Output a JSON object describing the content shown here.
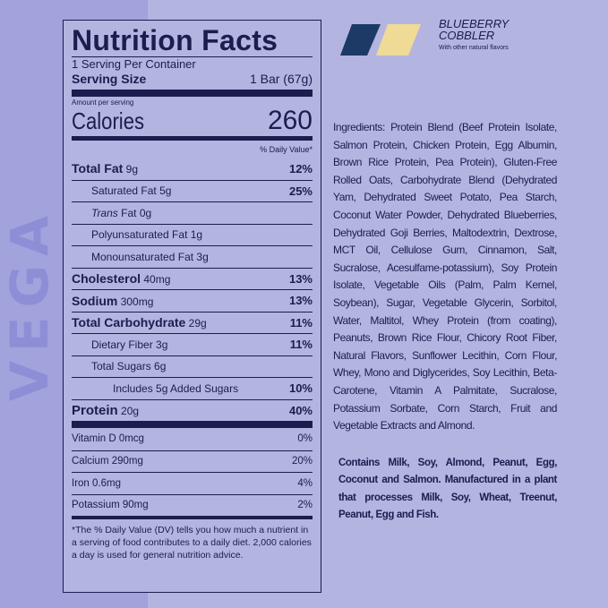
{
  "background_brand_text": "VEGA",
  "label": {
    "title": "Nutrition Facts",
    "servings": "1 Serving Per Container",
    "serving_size_label": "Serving Size",
    "serving_size": "1 Bar (67g)",
    "amount_per_serving": "Amount per serving",
    "calories_label": "Calories",
    "calories": "260",
    "dv_header": "% Daily Value*",
    "nutrients": [
      {
        "name": "Total Fat",
        "amount": "9g",
        "dv": "12%"
      },
      {
        "name": "Saturated Fat",
        "amount": "5g",
        "dv": "25%"
      },
      {
        "name": "Trans",
        "name2": "Fat",
        "amount": "0g",
        "dv": ""
      },
      {
        "name": "Polyunsaturated Fat",
        "amount": "1g",
        "dv": ""
      },
      {
        "name": "Monounsaturated Fat",
        "amount": "3g",
        "dv": ""
      },
      {
        "name": "Cholesterol",
        "amount": "40mg",
        "dv": "13%"
      },
      {
        "name": "Sodium",
        "amount": "300mg",
        "dv": "13%"
      },
      {
        "name": "Total Carbohydrate",
        "amount": "29g",
        "dv": "11%"
      },
      {
        "name": "Dietary Fiber",
        "amount": "3g",
        "dv": "11%"
      },
      {
        "name": "Total Sugars",
        "amount": "6g",
        "dv": ""
      },
      {
        "name": "Includes 5g Added Sugars",
        "amount": "",
        "dv": "10%"
      },
      {
        "name": "Protein",
        "amount": "20g",
        "dv": "40%"
      }
    ],
    "vitamins": [
      {
        "name": "Vitamin D 0mcg",
        "dv": "0%"
      },
      {
        "name": "Calcium 290mg",
        "dv": "20%"
      },
      {
        "name": "Iron 0.6mg",
        "dv": "4%"
      },
      {
        "name": "Potassium 90mg",
        "dv": "2%"
      }
    ],
    "footnote": "*The % Daily Value (DV) tells you how much a nutrient in a serving of food contributes to a daily diet. 2,000 calories a day is used for general nutrition advice."
  },
  "flavor": {
    "name_line1": "BLUEBERRY",
    "name_line2": "COBBLER",
    "subtitle": "With other natural flavors",
    "colors": [
      "#1d3a66",
      "#efdb95"
    ]
  },
  "ingredients": "Ingredients: Protein Blend (Beef Protein Isolate, Salmon Protein, Chicken Protein, Egg Albumin, Brown Rice Protein, Pea Protein), Gluten-Free Rolled Oats, Carbohydrate Blend (Dehydrated Yam, Dehydrated Sweet Potato, Pea Starch, Coconut Water Powder, Dehydrated Blueberries, Dehydrated Goji Berries, Maltodextrin, Dextrose, MCT Oil, Cellulose Gum, Cinnamon, Salt, Sucralose, Acesulfame-potassium), Soy Protein Isolate, Vegetable Oils (Palm, Palm Kernel, Soybean), Sugar, Vegetable Glycerin, Sorbitol, Water, Maltitol, Whey Protein (from coating), Peanuts, Brown Rice Flour, Chicory Root Fiber, Natural Flavors, Sunflower Lecithin, Corn Flour, Whey, Mono and Diglycerides, Soy Lecithin, Beta-Carotene, Vitamin A Palmitate, Sucralose, Potassium Sorbate, Corn Starch, Fruit and Vegetable Extracts and Almond.",
  "allergens": "Contains Milk, Soy, Almond, Peanut, Egg, Coconut and Salmon. Manufactured in a plant that processes Milk, Soy, Wheat, Treenut, Peanut, Egg and Fish."
}
